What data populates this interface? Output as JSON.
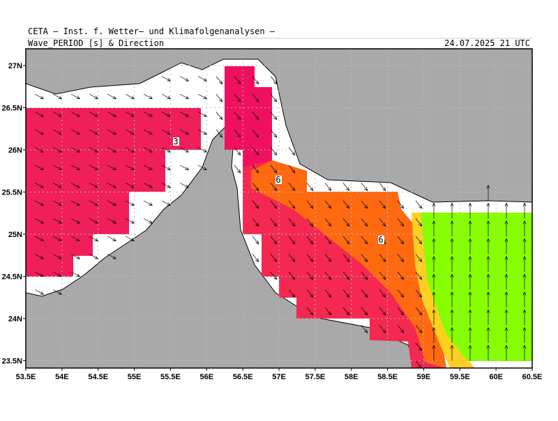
{
  "header": {
    "title": "CETA — Inst. f. Wetter— und Klimafolgenanalysen —",
    "subtitle": "Wave_PERIOD [s] & Direction",
    "date": "24.07.2025 21 UTC"
  },
  "map": {
    "x_ticks": [
      "53.5E",
      "54E",
      "54.5E",
      "55E",
      "55.5E",
      "56E",
      "56.5E",
      "57E",
      "57.5E",
      "58E",
      "58.5E",
      "59E",
      "59.5E",
      "60E",
      "60.5E"
    ],
    "y_ticks": [
      "27N",
      "26.5N",
      "26N",
      "25.5N",
      "25N",
      "24.5N",
      "24N",
      "23.5N"
    ],
    "contour_labels": [
      "3",
      "6",
      "6"
    ]
  }
}
